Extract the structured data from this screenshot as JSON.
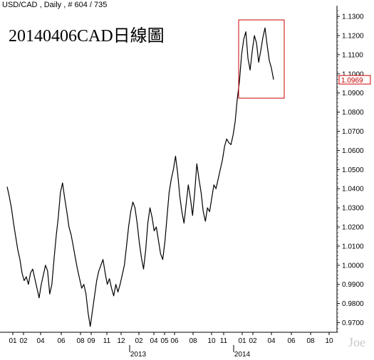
{
  "header": {
    "symbol": "USD/CAD",
    "period": "Daily",
    "bar_info": "# 604 / 735"
  },
  "overlay_title": "20140406CAD日線圖",
  "watermark": "Joe",
  "colors": {
    "background": "#ffffff",
    "price_line": "#000000",
    "axis": "#000000",
    "highlight_box": "#cc0000",
    "last_price_label": "#cc0000"
  },
  "chart_data": {
    "type": "line",
    "title": "20140406CAD日線圖",
    "xlabel": "",
    "ylabel": "",
    "ylim": [
      0.965,
      1.133
    ],
    "grid": false,
    "y_ticks": [
      0.97,
      0.98,
      0.99,
      1.0,
      1.01,
      1.02,
      1.03,
      1.04,
      1.05,
      1.06,
      1.07,
      1.08,
      1.09,
      1.1,
      1.11,
      1.12,
      1.13
    ],
    "y_tick_labels": [
      "0.9700",
      "0.9800",
      "0.9900",
      "1.0000",
      "1.0100",
      "1.0200",
      "1.0300",
      "1.0400",
      "1.0500",
      "1.0600",
      "1.0700",
      "1.0800",
      "1.0900",
      "1.1000",
      "1.1100",
      "1.1200",
      "1.1300"
    ],
    "x_month_labels": [
      "01",
      "02",
      "04",
      "06",
      "08",
      "09",
      "11",
      "12",
      "02",
      "04",
      "05",
      "06",
      "08",
      "10",
      "11",
      "01",
      "02",
      "04",
      "06",
      "08",
      "10"
    ],
    "x_year_labels": [
      "2013",
      "2014"
    ],
    "last_price": "1.0969",
    "series": [
      {
        "values": [
          1.041,
          1.036,
          1.03,
          1.022,
          1.015,
          1.008,
          1.003,
          0.996,
          0.992,
          0.994,
          0.99,
          0.996,
          0.998,
          0.993,
          0.988,
          0.983,
          0.99,
          0.995,
          1.0,
          0.997,
          0.985,
          0.99,
          1.003,
          1.015,
          1.025,
          1.038,
          1.043,
          1.035,
          1.028,
          1.02,
          1.016,
          1.01,
          1.004,
          0.998,
          0.993,
          0.988,
          0.99,
          0.985,
          0.975,
          0.968,
          0.976,
          0.984,
          0.992,
          0.997,
          1.0,
          1.003,
          0.996,
          0.99,
          0.993,
          0.988,
          0.984,
          0.99,
          0.986,
          0.99,
          0.995,
          1.0,
          1.01,
          1.02,
          1.028,
          1.033,
          1.03,
          1.022,
          1.012,
          1.004,
          0.998,
          1.008,
          1.022,
          1.03,
          1.025,
          1.018,
          1.02,
          1.013,
          1.006,
          1.003,
          1.012,
          1.025,
          1.038,
          1.045,
          1.05,
          1.057,
          1.048,
          1.036,
          1.028,
          1.022,
          1.032,
          1.042,
          1.035,
          1.026,
          1.038,
          1.053,
          1.045,
          1.038,
          1.028,
          1.023,
          1.03,
          1.028,
          1.035,
          1.042,
          1.04,
          1.045,
          1.05,
          1.055,
          1.062,
          1.066,
          1.064,
          1.063,
          1.068,
          1.075,
          1.087,
          1.096,
          1.11,
          1.118,
          1.122,
          1.108,
          1.102,
          1.112,
          1.12,
          1.116,
          1.106,
          1.112,
          1.119,
          1.124,
          1.115,
          1.107,
          1.103,
          1.097
        ]
      }
    ]
  }
}
